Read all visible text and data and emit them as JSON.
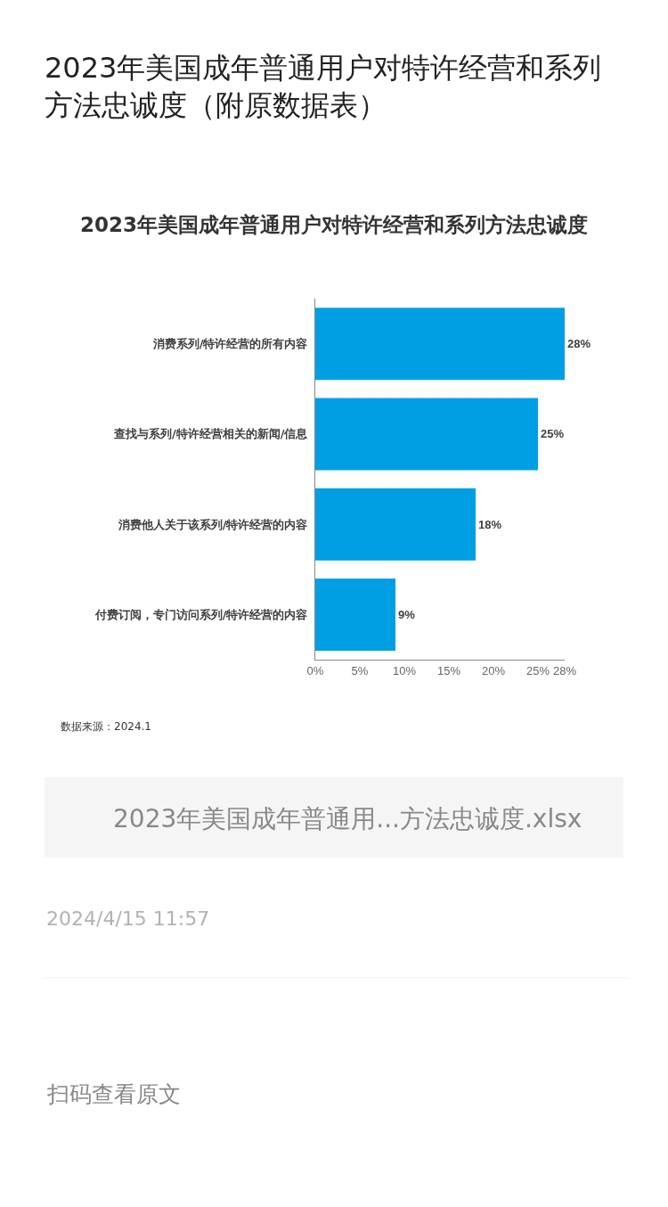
{
  "chart_data": {
    "type": "bar",
    "orientation": "horizontal",
    "title": "2023年美国成年普通用户对特许经营和系列方法忠诚度（附原数据表）",
    "subtitle": "2023年美国成年普通用户对特许经营和系列方法忠诚度",
    "categories": [
      "消费系列/特许经营的所有内容",
      "查找与系列/特许经营相关的新闻/信息",
      "消费他人关于该系列/特许经营的内容",
      "付费订阅，专门访问系列/特许经营的内容"
    ],
    "values": [
      28,
      25,
      18,
      9
    ],
    "color": "#009fe3",
    "value_labels": [
      "28%",
      "25%",
      "18%",
      "9%"
    ],
    "xlim": [
      0,
      28
    ],
    "xticks": [
      {
        "value": 0,
        "label": "0%"
      },
      {
        "value": 5,
        "label": "5%"
      },
      {
        "value": 10,
        "label": "10%"
      },
      {
        "value": 15,
        "label": "15%"
      },
      {
        "value": 20,
        "label": "20%"
      },
      {
        "value": 25,
        "label": "25%"
      },
      {
        "value": 28,
        "label": "28%"
      }
    ],
    "grid": false,
    "annotations": [
      "数据来源：2024.1",
      "2023年美国成年普通用...方法忠诚度.xlsx",
      "2024/4/15 11:57",
      "扫码查看原文"
    ]
  }
}
